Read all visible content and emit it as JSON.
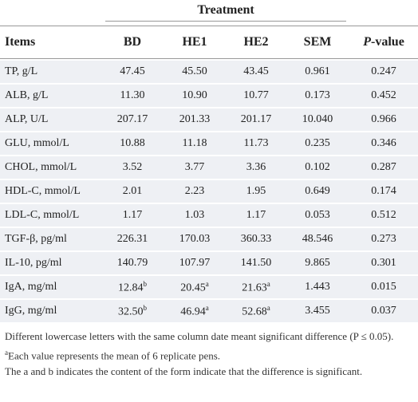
{
  "table": {
    "group_header": "Treatment",
    "columns": [
      "Items",
      "BD",
      "HE1",
      "HE2",
      "SEM",
      {
        "italic": "P",
        "rest": "-value"
      }
    ],
    "rows": [
      [
        "TP, g/L",
        "47.45",
        "45.50",
        "43.45",
        "0.961",
        "0.247"
      ],
      [
        "ALB, g/L",
        "11.30",
        "10.90",
        "10.77",
        "0.173",
        "0.452"
      ],
      [
        "ALP, U/L",
        "207.17",
        "201.33",
        "201.17",
        "10.040",
        "0.966"
      ],
      [
        "GLU, mmol/L",
        "10.88",
        "11.18",
        "11.73",
        "0.235",
        "0.346"
      ],
      [
        "CHOL, mmol/L",
        "3.52",
        "3.77",
        "3.36",
        "0.102",
        "0.287"
      ],
      [
        "HDL-C, mmol/L",
        "2.01",
        "2.23",
        "1.95",
        "0.649",
        "0.174"
      ],
      [
        "LDL-C, mmol/L",
        "1.17",
        "1.03",
        "1.17",
        "0.053",
        "0.512"
      ],
      [
        "TGF-β, pg/ml",
        "226.31",
        "170.03",
        "360.33",
        "48.546",
        "0.273"
      ],
      [
        "IL-10, pg/ml",
        "140.79",
        "107.97",
        "141.50",
        "9.865",
        "0.301"
      ],
      [
        "IgA, mg/ml",
        {
          "text": "12.84",
          "sup": "b"
        },
        {
          "text": "20.45",
          "sup": "a"
        },
        {
          "text": "21.63",
          "sup": "a"
        },
        "1.443",
        "0.015"
      ],
      [
        "IgG, mg/ml",
        {
          "text": "32.50",
          "sup": "b"
        },
        {
          "text": "46.94",
          "sup": "a"
        },
        {
          "text": "52.68",
          "sup": "a"
        },
        "3.455",
        "0.037"
      ]
    ],
    "footnotes": [
      {
        "text": "Different lowercase letters with the same column date meant significant difference (P ≤ 0.05)."
      },
      {
        "sup": "a",
        "text": "Each value represents the mean of 6 replicate pens."
      },
      {
        "text": "The a and b indicates the content of the form indicate that the difference is significant."
      }
    ]
  }
}
